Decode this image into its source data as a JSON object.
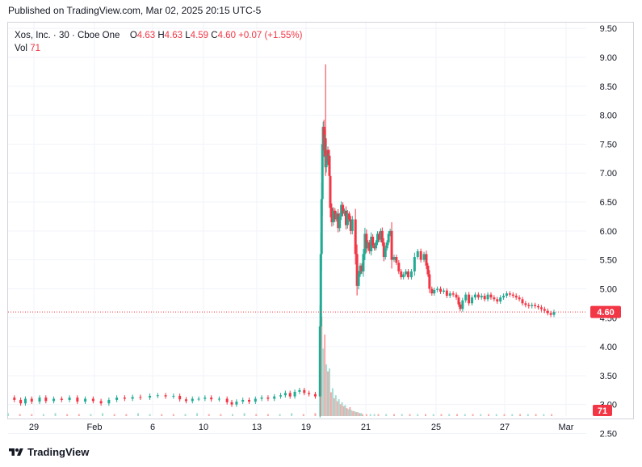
{
  "header": {
    "published": "Published on TradingView.com, Mar 02, 2025 20:15 UTC-5"
  },
  "legend": {
    "symbol": "Xos, Inc. · 30 · Cboe One",
    "o_label": "O",
    "o_value": "4.63",
    "h_label": "H",
    "h_value": "4.63",
    "l_label": "L",
    "l_value": "4.59",
    "c_label": "C",
    "c_value": "4.60",
    "change": "+0.07 (+1.55%)",
    "vol_label": "Vol",
    "vol_value": "71"
  },
  "footer": {
    "brand": "TradingView"
  },
  "colors": {
    "up": "#22ab94",
    "down": "#f23645",
    "up_volume": "#a5dcd3",
    "down_volume": "#f7a9a7",
    "grid": "#f0f3fa"
  },
  "chart_data": {
    "type": "candlestick",
    "symbol": "Xos, Inc.",
    "interval": "30",
    "exchange": "Cboe One",
    "y_axis": {
      "range": [
        2.8,
        9.6
      ],
      "ticks": [
        "9.50",
        "9.00",
        "8.50",
        "8.00",
        "7.50",
        "7.00",
        "6.50",
        "6.00",
        "5.50",
        "5.00",
        "4.50",
        "4.00",
        "3.50",
        "3.00",
        "2.50"
      ],
      "position": "right"
    },
    "x_axis": {
      "ticks": [
        "29",
        "Feb",
        "6",
        "10",
        "13",
        "19",
        "21",
        "25",
        "27",
        "Mar"
      ]
    },
    "last_price": "4.60",
    "last_volume": "71",
    "path": [
      [
        0,
        3.12
      ],
      [
        8,
        3.08
      ],
      [
        16,
        3.02
      ],
      [
        22,
        3.1
      ],
      [
        30,
        3.05
      ],
      [
        40,
        3.12
      ],
      [
        48,
        3.06
      ],
      [
        58,
        3.1
      ],
      [
        68,
        3.08
      ],
      [
        78,
        3.12
      ],
      [
        88,
        3.05
      ],
      [
        98,
        3.1
      ],
      [
        108,
        3.06
      ],
      [
        118,
        3.02
      ],
      [
        128,
        3.08
      ],
      [
        138,
        3.12
      ],
      [
        148,
        3.1
      ],
      [
        158,
        3.13
      ],
      [
        168,
        3.12
      ],
      [
        180,
        3.15
      ],
      [
        190,
        3.16
      ],
      [
        200,
        3.14
      ],
      [
        210,
        3.15
      ],
      [
        218,
        3.09
      ],
      [
        226,
        3.06
      ],
      [
        234,
        3.1
      ],
      [
        242,
        3.1
      ],
      [
        250,
        3.12
      ],
      [
        258,
        3.09
      ],
      [
        268,
        3.1
      ],
      [
        278,
        3.04
      ],
      [
        284,
        3.0
      ],
      [
        290,
        3.05
      ],
      [
        298,
        3.08
      ],
      [
        306,
        3.05
      ],
      [
        314,
        3.1
      ],
      [
        322,
        3.12
      ],
      [
        330,
        3.1
      ],
      [
        338,
        3.14
      ],
      [
        346,
        3.16
      ],
      [
        352,
        3.2
      ],
      [
        358,
        3.14
      ],
      [
        364,
        3.22
      ],
      [
        370,
        3.25
      ],
      [
        376,
        3.2
      ],
      [
        382,
        3.18
      ],
      [
        390,
        3.14
      ],
      [
        396,
        4.35
      ],
      [
        397,
        5.6
      ],
      [
        398,
        6.55
      ],
      [
        399,
        7.5
      ],
      [
        400,
        7.8
      ],
      [
        401,
        7.4
      ],
      [
        402,
        7.6
      ],
      [
        403,
        7.1
      ],
      [
        404,
        7.4
      ],
      [
        406,
        7.2
      ],
      [
        407,
        7.3
      ],
      [
        408,
        6.95
      ],
      [
        409,
        6.4
      ],
      [
        411,
        6.15
      ],
      [
        413,
        6.35
      ],
      [
        415,
        6.2
      ],
      [
        417,
        6.3
      ],
      [
        419,
        6.05
      ],
      [
        421,
        6.25
      ],
      [
        423,
        6.45
      ],
      [
        425,
        6.3
      ],
      [
        427,
        6.35
      ],
      [
        429,
        6.1
      ],
      [
        431,
        6.3
      ],
      [
        433,
        6.2
      ],
      [
        435,
        6.0
      ],
      [
        437,
        6.2
      ],
      [
        441,
        5.6
      ],
      [
        443,
        5.05
      ],
      [
        445,
        5.25
      ],
      [
        447,
        5.4
      ],
      [
        449,
        5.3
      ],
      [
        451,
        5.6
      ],
      [
        453,
        5.95
      ],
      [
        455,
        5.7
      ],
      [
        457,
        5.8
      ],
      [
        459,
        5.65
      ],
      [
        461,
        5.9
      ],
      [
        463,
        5.75
      ],
      [
        465,
        5.7
      ],
      [
        467,
        5.8
      ],
      [
        469,
        5.95
      ],
      [
        471,
        5.85
      ],
      [
        473,
        6.0
      ],
      [
        475,
        5.8
      ],
      [
        477,
        5.55
      ],
      [
        479,
        5.7
      ],
      [
        481,
        5.8
      ],
      [
        483,
        5.95
      ],
      [
        485,
        6.0
      ],
      [
        487,
        5.5
      ],
      [
        490,
        5.55
      ],
      [
        493,
        5.45
      ],
      [
        496,
        5.3
      ],
      [
        499,
        5.2
      ],
      [
        502,
        5.25
      ],
      [
        505,
        5.3
      ],
      [
        508,
        5.2
      ],
      [
        512,
        5.3
      ],
      [
        516,
        5.55
      ],
      [
        520,
        5.65
      ],
      [
        524,
        5.5
      ],
      [
        528,
        5.6
      ],
      [
        531,
        5.4
      ],
      [
        533,
        5.25
      ],
      [
        535,
        5.0
      ],
      [
        538,
        4.92
      ],
      [
        541,
        4.98
      ],
      [
        545,
        5.0
      ],
      [
        549,
        4.95
      ],
      [
        553,
        4.97
      ],
      [
        557,
        4.88
      ],
      [
        561,
        4.92
      ],
      [
        565,
        4.9
      ],
      [
        569,
        4.85
      ],
      [
        572,
        4.73
      ],
      [
        574,
        4.65
      ],
      [
        577,
        4.8
      ],
      [
        581,
        4.9
      ],
      [
        585,
        4.75
      ],
      [
        589,
        4.85
      ],
      [
        593,
        4.9
      ],
      [
        597,
        4.85
      ],
      [
        601,
        4.88
      ],
      [
        605,
        4.82
      ],
      [
        609,
        4.9
      ],
      [
        613,
        4.85
      ],
      [
        617,
        4.82
      ],
      [
        621,
        4.78
      ],
      [
        625,
        4.85
      ],
      [
        629,
        4.88
      ],
      [
        633,
        4.92
      ],
      [
        637,
        4.9
      ],
      [
        641,
        4.88
      ],
      [
        645,
        4.85
      ],
      [
        649,
        4.82
      ],
      [
        653,
        4.75
      ],
      [
        657,
        4.72
      ],
      [
        661,
        4.7
      ],
      [
        665,
        4.72
      ],
      [
        669,
        4.7
      ],
      [
        673,
        4.68
      ],
      [
        677,
        4.65
      ],
      [
        681,
        4.62
      ],
      [
        685,
        4.58
      ],
      [
        689,
        4.55
      ],
      [
        693,
        4.6
      ]
    ],
    "volume_max": 100,
    "volume": [
      [
        0,
        3
      ],
      [
        15,
        2
      ],
      [
        30,
        2
      ],
      [
        45,
        2
      ],
      [
        60,
        3
      ],
      [
        75,
        2
      ],
      [
        90,
        2
      ],
      [
        105,
        2
      ],
      [
        120,
        3
      ],
      [
        135,
        2
      ],
      [
        150,
        2
      ],
      [
        165,
        3
      ],
      [
        180,
        2
      ],
      [
        195,
        2
      ],
      [
        210,
        2
      ],
      [
        225,
        2
      ],
      [
        240,
        3
      ],
      [
        255,
        2
      ],
      [
        270,
        2
      ],
      [
        285,
        2
      ],
      [
        300,
        3
      ],
      [
        315,
        2
      ],
      [
        330,
        2
      ],
      [
        345,
        2
      ],
      [
        360,
        3
      ],
      [
        375,
        2
      ],
      [
        390,
        3
      ],
      [
        396,
        72
      ],
      [
        398,
        100
      ],
      [
        400,
        68
      ],
      [
        402,
        82
      ],
      [
        404,
        52
      ],
      [
        406,
        45
      ],
      [
        408,
        48
      ],
      [
        410,
        24
      ],
      [
        412,
        28
      ],
      [
        414,
        18
      ],
      [
        416,
        21
      ],
      [
        418,
        15
      ],
      [
        420,
        17
      ],
      [
        422,
        12
      ],
      [
        424,
        14
      ],
      [
        426,
        10
      ],
      [
        428,
        11
      ],
      [
        430,
        8
      ],
      [
        432,
        7
      ],
      [
        434,
        9
      ],
      [
        436,
        6
      ],
      [
        438,
        5
      ],
      [
        440,
        5
      ],
      [
        442,
        4
      ],
      [
        444,
        4
      ],
      [
        446,
        3
      ],
      [
        448,
        3
      ],
      [
        450,
        2
      ],
      [
        455,
        2
      ],
      [
        460,
        2
      ],
      [
        465,
        2
      ],
      [
        470,
        2
      ],
      [
        480,
        2
      ],
      [
        490,
        2
      ],
      [
        500,
        2
      ],
      [
        510,
        2
      ],
      [
        520,
        2
      ],
      [
        530,
        2
      ],
      [
        540,
        2
      ],
      [
        550,
        2
      ],
      [
        560,
        2
      ],
      [
        570,
        2
      ],
      [
        580,
        2
      ],
      [
        590,
        2
      ],
      [
        600,
        2
      ],
      [
        610,
        2
      ],
      [
        620,
        2
      ],
      [
        630,
        2
      ],
      [
        640,
        2
      ],
      [
        650,
        2
      ],
      [
        660,
        2
      ],
      [
        670,
        2
      ],
      [
        680,
        2
      ],
      [
        690,
        2
      ]
    ]
  }
}
